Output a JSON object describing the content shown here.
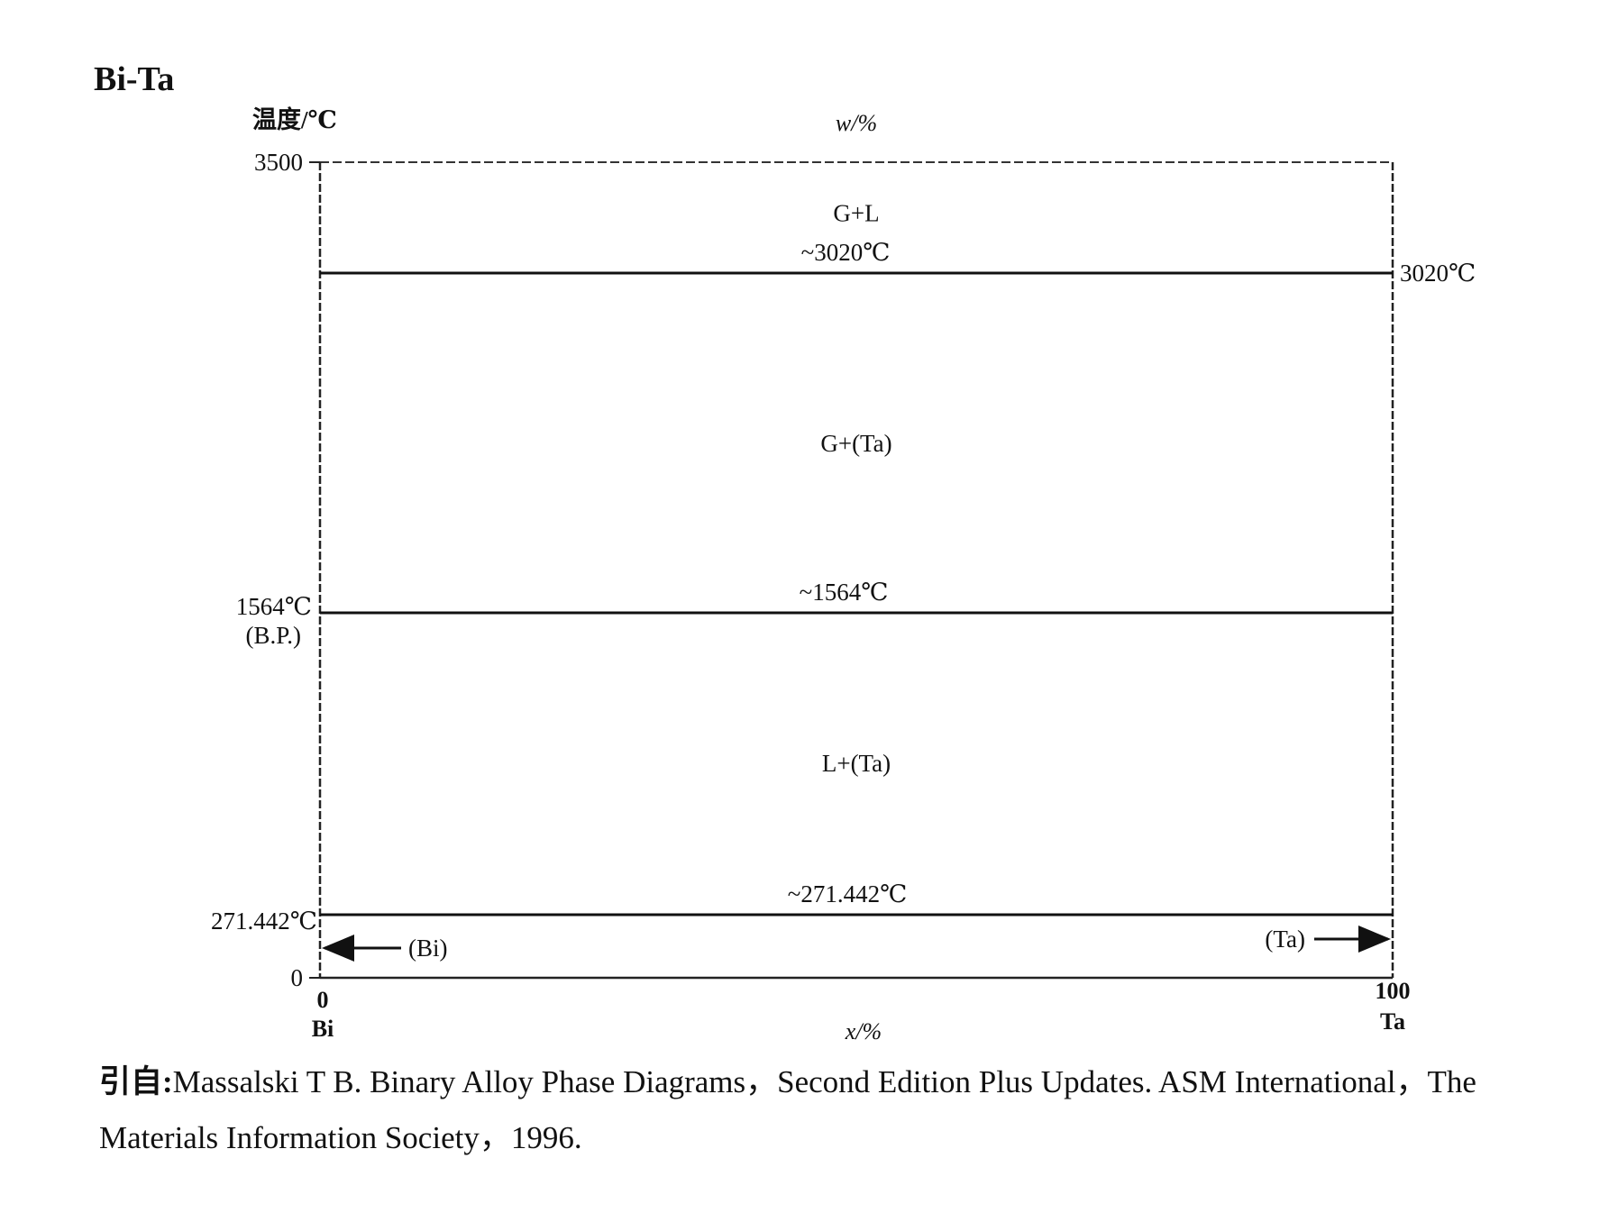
{
  "page": {
    "title": "Bi-Ta",
    "caption": {
      "lead": "引自:",
      "line1_rest": "Massalski T B.  Binary Alloy Phase Diagrams，Second Edition Plus Updates.  ASM International，The",
      "line2": "Materials Information Society，1996."
    }
  },
  "chart_data": {
    "type": "phase-diagram",
    "system": "Bi-Ta",
    "ylabel": "温度/℃",
    "xlabel_top": "w/%",
    "xlabel_bottom": "x/%",
    "xlim": [
      0,
      100
    ],
    "ylim": [
      0,
      3500
    ],
    "y_ticks": [
      {
        "value": 0,
        "label": "0"
      },
      {
        "value": 3500,
        "label": "3500"
      }
    ],
    "x_ticks": [
      {
        "value": 0,
        "label": "0",
        "element": "Bi"
      },
      {
        "value": 100,
        "label": "100",
        "element": "Ta"
      }
    ],
    "isotherms": [
      {
        "name": "upper",
        "temperature": 3020,
        "label": "~3020℃",
        "right_label": "3020℃"
      },
      {
        "name": "middle",
        "temperature": 1564,
        "label": "~1564℃",
        "left_label": "1564℃",
        "left_sublabel": "(B.P.)"
      },
      {
        "name": "lower",
        "temperature": 271.442,
        "label": "~271.442℃",
        "left_label": "271.442℃"
      }
    ],
    "regions": [
      {
        "label": "G+L",
        "x": 50,
        "y": 3280
      },
      {
        "label": "G+(Ta)",
        "x": 50,
        "y": 2290
      },
      {
        "label": "L+(Ta)",
        "x": 50,
        "y": 920
      }
    ],
    "solid_phases": [
      {
        "label": "(Bi)",
        "x": 0,
        "arrow": "left"
      },
      {
        "label": "(Ta)",
        "x": 100,
        "arrow": "right"
      }
    ]
  }
}
